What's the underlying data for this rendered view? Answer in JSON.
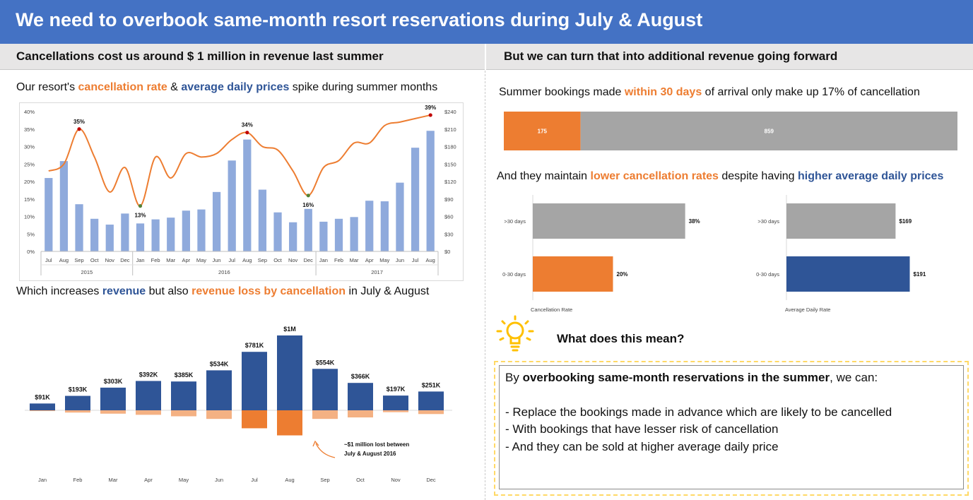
{
  "title": "We need to overbook same-month resort reservations during July & August",
  "left": {
    "subheader": "Cancellations cost us around $ 1 million in revenue last summer",
    "chart1": {
      "heading": {
        "pre": "Our resort's ",
        "h1": "cancellation rate",
        "mid": " & ",
        "h2": "average daily prices",
        "post": " spike during summer months"
      }
    },
    "chart2": {
      "heading": {
        "pre": "Which increases ",
        "h1": "revenue",
        "mid": " but also ",
        "h2": "revenue loss by cancellation",
        "post": " in July & August"
      }
    }
  },
  "right": {
    "subheader": "But we can turn that into additional revenue going forward",
    "chart3": {
      "heading": {
        "pre": "Summer bookings made ",
        "h1": "within 30 days",
        "post": " of arrival only make up 17% of cancellation"
      }
    },
    "chart4": {
      "heading": {
        "pre": "And they maintain ",
        "h1": "lower cancellation rates",
        "mid": " despite having ",
        "h2": "higher average daily prices"
      }
    },
    "insight_title": "What does this mean?",
    "conclusion": {
      "intro_pre": "By ",
      "intro_bold": "overbooking same-month reservations in the summer",
      "intro_post": ", we can:",
      "points": [
        "- Replace the bookings made in advance which are likely to be cancelled",
        "- With bookings that have lesser risk of cancellation",
        "- And they can be sold at higher average daily price"
      ]
    }
  },
  "colors": {
    "banner": "#4472C4",
    "bar_blue": "#8FAADC",
    "line_orange": "#ED7D31",
    "dark_blue": "#2F5597",
    "gray": "#A5A5A5",
    "light_orange": "#F4B183",
    "bulb": "#FFC000"
  },
  "chart_data": [
    {
      "type": "bar+line",
      "months": [
        "Jul",
        "Aug",
        "Sep",
        "Oct",
        "Nov",
        "Dec",
        "Jan",
        "Feb",
        "Mar",
        "Apr",
        "May",
        "Jun",
        "Jul",
        "Aug",
        "Sep",
        "Oct",
        "Nov",
        "Dec",
        "Jan",
        "Feb",
        "Mar",
        "Apr",
        "May",
        "Jun",
        "Jul",
        "Aug"
      ],
      "years": [
        {
          "label": "2015",
          "span": 6
        },
        {
          "label": "2016",
          "span": 12
        },
        {
          "label": "2017",
          "span": 8
        }
      ],
      "series": [
        {
          "name": "Average daily price",
          "axis": "right",
          "values": [
            126,
            155,
            81,
            56,
            46,
            65,
            48,
            55,
            58,
            70,
            72,
            102,
            156,
            192,
            106,
            67,
            50,
            73,
            51,
            56,
            59,
            87,
            86,
            118,
            178,
            207
          ]
        },
        {
          "name": "Cancellation rate",
          "axis": "left",
          "values": [
            23,
            25,
            35,
            27,
            17,
            24,
            13,
            27,
            21,
            28,
            27,
            28,
            32,
            34,
            30,
            29,
            23,
            16,
            24,
            26,
            31,
            31,
            36,
            37,
            38,
            39
          ]
        }
      ],
      "annotations": [
        {
          "index": 2,
          "label": "35%"
        },
        {
          "index": 6,
          "label": "13%"
        },
        {
          "index": 13,
          "label": "34%"
        },
        {
          "index": 17,
          "label": "16%"
        },
        {
          "index": 25,
          "label": "39%"
        }
      ],
      "left_axis": {
        "ticks": [
          "0%",
          "5%",
          "10%",
          "15%",
          "20%",
          "25%",
          "30%",
          "35%",
          "40%"
        ],
        "max": 40
      },
      "right_axis": {
        "ticks": [
          "$0",
          "$30",
          "$60",
          "$90",
          "$120",
          "$150",
          "$180",
          "$210",
          "$240"
        ],
        "max": 240
      }
    },
    {
      "type": "diverging-bar",
      "categories": [
        "Jan",
        "Feb",
        "Mar",
        "Apr",
        "May",
        "Jun",
        "Jul",
        "Aug",
        "Sep",
        "Oct",
        "Nov",
        "Dec"
      ],
      "revenue": [
        91,
        193,
        303,
        392,
        385,
        534,
        781,
        1000,
        554,
        366,
        197,
        251
      ],
      "revenue_labels": [
        "$91K",
        "$193K",
        "$303K",
        "$392K",
        "$385K",
        "$534K",
        "$781K",
        "$1M",
        "$554K",
        "$366K",
        "$197K",
        "$251K"
      ],
      "loss": [
        10,
        30,
        45,
        60,
        80,
        115,
        240,
        335,
        115,
        95,
        25,
        50
      ],
      "annotation": [
        "~$1 million lost between",
        "July & August 2016"
      ]
    },
    {
      "type": "stacked-bar-horizontal",
      "segments": [
        {
          "label": "175",
          "value": 175
        },
        {
          "label": "859",
          "value": 859
        }
      ]
    },
    {
      "type": "bar-horizontal",
      "title": "Cancellation Rate",
      "categories": [
        ">30 days",
        "0-30 days"
      ],
      "values": [
        38,
        20
      ],
      "labels": [
        "38%",
        "20%"
      ],
      "max": 40
    },
    {
      "type": "bar-horizontal",
      "title": "Average Daily Rate",
      "categories": [
        ">30 days",
        "0-30 days"
      ],
      "values": [
        169,
        191
      ],
      "labels": [
        "$169",
        "$191"
      ],
      "max": 220
    }
  ]
}
